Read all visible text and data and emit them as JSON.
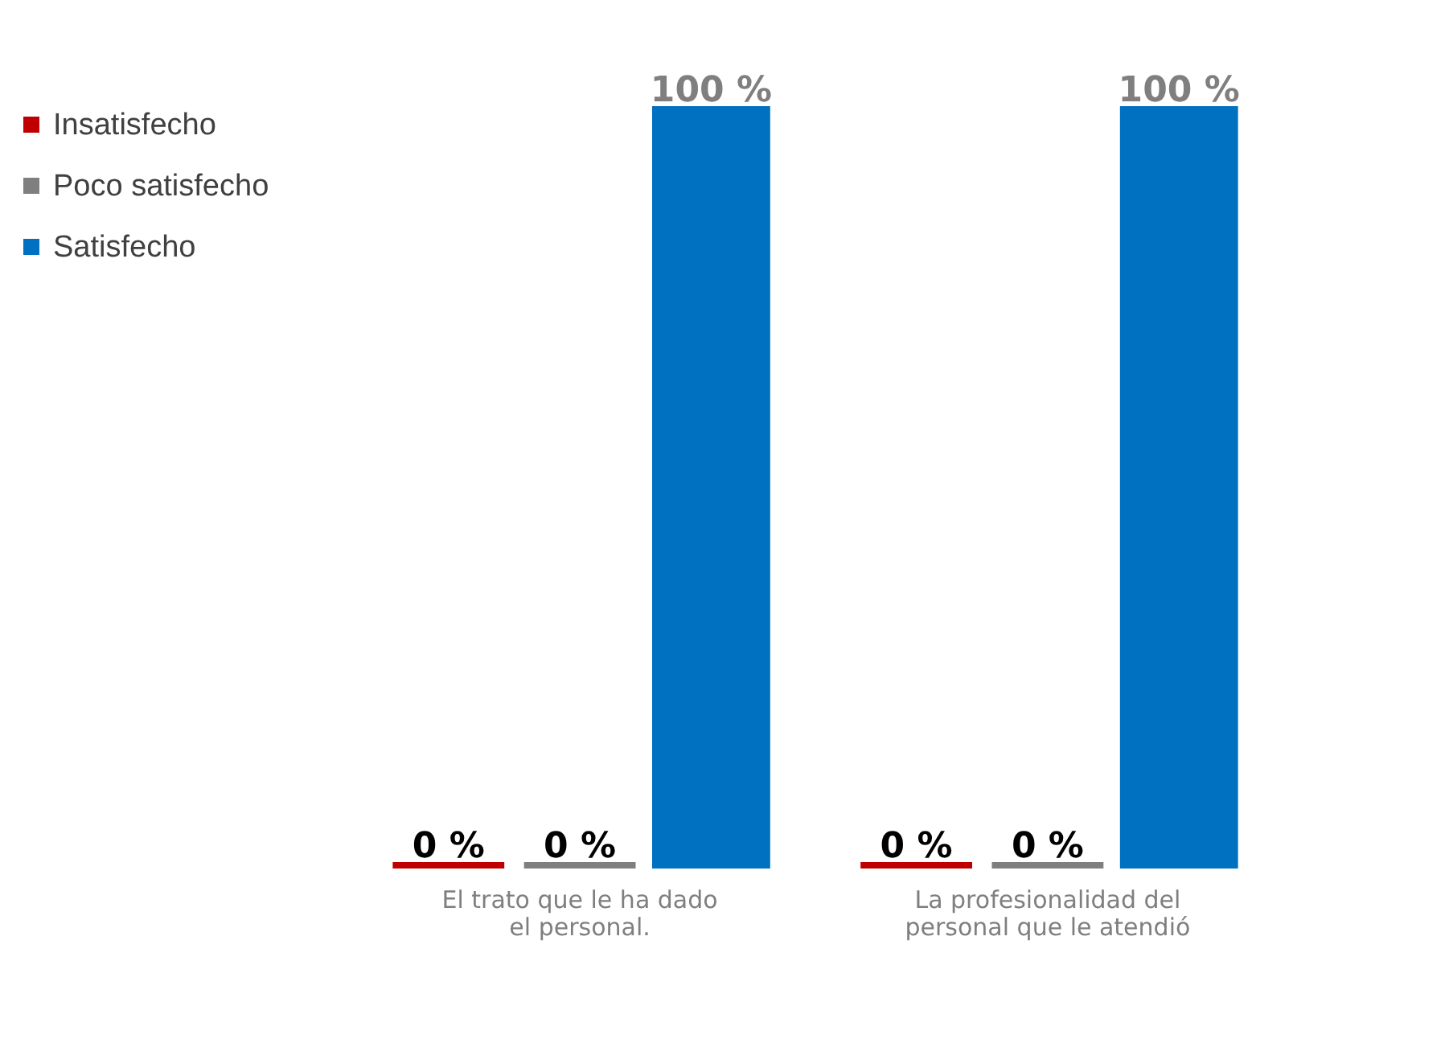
{
  "chart_data": {
    "type": "bar",
    "categories": [
      "El trato que le ha dado el personal.",
      "La profesionalidad del personal que le atendió"
    ],
    "series": [
      {
        "name": "Insatisfecho",
        "color": "#c00000",
        "values": [
          0,
          0
        ],
        "value_labels": [
          "0 %",
          "0 %"
        ]
      },
      {
        "name": "Poco satisfecho",
        "color": "#7f7f7f",
        "values": [
          0,
          0
        ],
        "value_labels": [
          "0 %",
          "0 %"
        ]
      },
      {
        "name": "Satisfecho",
        "color": "#0070c0",
        "values": [
          100,
          100
        ],
        "value_labels": [
          "100 %",
          "100 %"
        ]
      }
    ],
    "legend": "top left"
  }
}
